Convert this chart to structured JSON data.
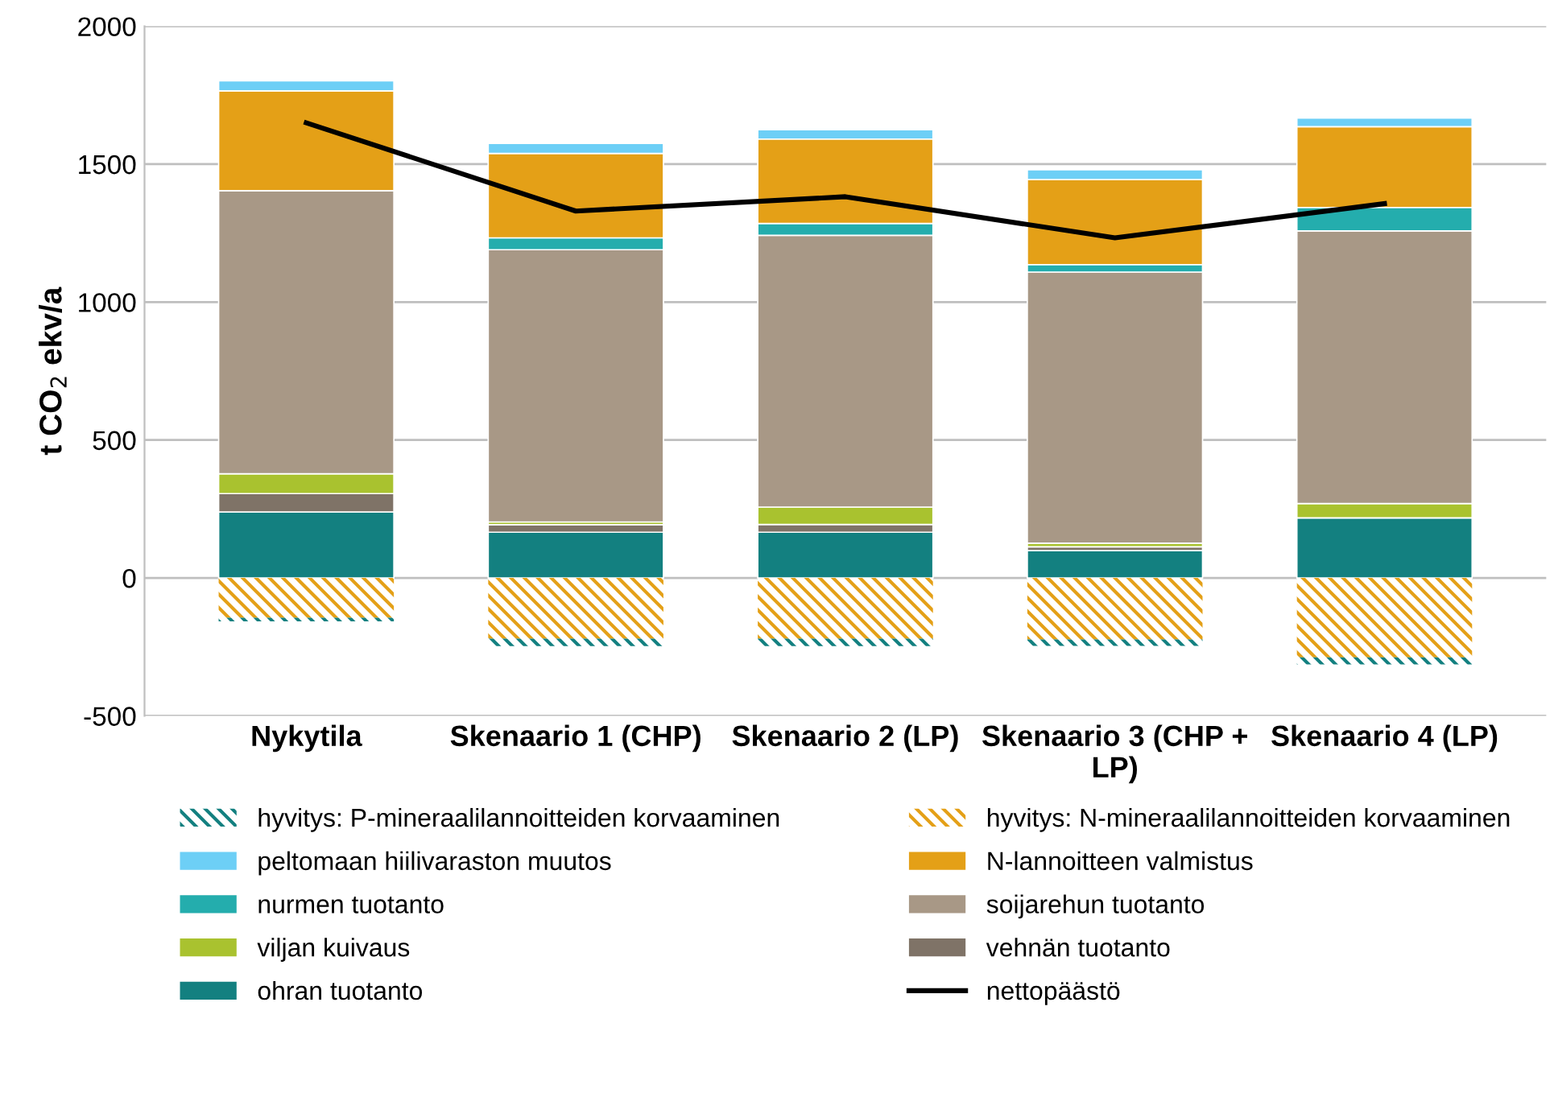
{
  "chart_data": {
    "type": "bar",
    "stacked": true,
    "ylabel": "t CO$_{2}$ ekv/a",
    "categories": [
      "Nykytila",
      "Skenaario 1 (CHP)",
      "Skenaario 2 (LP)",
      "Skenaario 3 (CHP + LP)",
      "Skenaario 4 (LP)"
    ],
    "series": [
      {
        "name": "ohran tuotanto",
        "color": "#138080",
        "values": [
          239,
          166,
          166,
          99,
          218
        ]
      },
      {
        "name": "vehnän tuotanto",
        "color": "#7f7367",
        "values": [
          67,
          27,
          28,
          14,
          0
        ]
      },
      {
        "name": "viljan kuivaus",
        "color": "#a9c22f",
        "values": [
          72,
          10,
          63,
          13,
          52
        ]
      },
      {
        "name": "soijarehun tuotanto",
        "color": "#a89886",
        "values": [
          1026,
          987,
          985,
          983,
          988
        ]
      },
      {
        "name": "nurmen tuotanto",
        "color": "#24adad",
        "values": [
          0,
          43,
          43,
          27,
          85
        ]
      },
      {
        "name": "N-lannoitteen valmistus",
        "color": "#e4a017",
        "values": [
          362,
          306,
          306,
          308,
          293
        ]
      },
      {
        "name": "peltomaan hiilivaraston muutos",
        "color": "#6dcff6",
        "values": [
          36,
          36,
          34,
          36,
          31
        ]
      },
      {
        "name": "hyvitys: N-mineraalilannoitteiden korvaaminen",
        "color": "#e4a017",
        "values": [
          -144,
          -220,
          -220,
          -223,
          -288
        ]
      },
      {
        "name": "hyvitys: P-mineraalilannoitteiden korvaaminen",
        "color": "#138080",
        "values": [
          -13,
          -27,
          -27,
          -23,
          -25
        ]
      },
      {
        "name": "nettopäästö",
        "type": "line",
        "color": "#000000",
        "values": [
          1650,
          1330,
          1382,
          1233,
          1357
        ]
      }
    ],
    "ylim": [
      -500,
      2000
    ],
    "yticks": [
      -500,
      0,
      500,
      1000,
      1500,
      2000
    ],
    "grid": "y",
    "legend": "bottom"
  }
}
